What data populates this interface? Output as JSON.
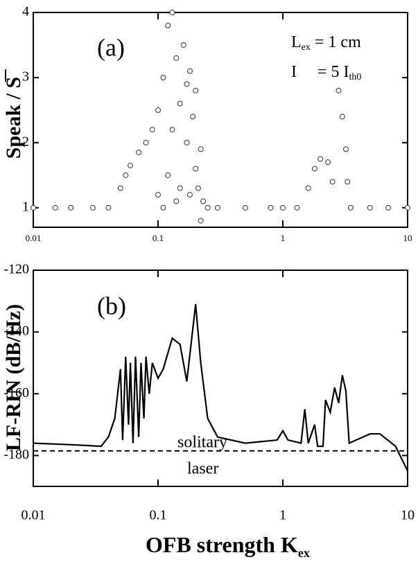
{
  "chart_data": [
    {
      "type": "scatter",
      "label": "(a)",
      "y_label": "Speak / S",
      "notes": [
        [
          "L",
          "ex",
          "= 1 cm"
        ],
        [
          "I",
          "= 5 I",
          "th0"
        ]
      ],
      "xscale": "log",
      "xlim": [
        0.01,
        10
      ],
      "xticks": [
        0.01,
        0.1,
        1,
        10
      ],
      "ylim": [
        0.7,
        4
      ],
      "yticks": [
        1,
        2,
        3,
        4
      ],
      "color": "#333333",
      "x": [
        0.01,
        0.015,
        0.02,
        0.03,
        0.04,
        0.05,
        0.055,
        0.06,
        0.07,
        0.08,
        0.09,
        0.1,
        0.1,
        0.11,
        0.11,
        0.12,
        0.12,
        0.13,
        0.13,
        0.14,
        0.14,
        0.15,
        0.15,
        0.16,
        0.17,
        0.17,
        0.18,
        0.18,
        0.19,
        0.2,
        0.2,
        0.21,
        0.22,
        0.22,
        0.23,
        0.25,
        0.3,
        0.5,
        0.8,
        1,
        1.3,
        1.6,
        1.8,
        2.0,
        2.3,
        2.5,
        2.8,
        3.0,
        3.2,
        3.3,
        3.5,
        5,
        7,
        10
      ],
      "values": [
        1,
        1,
        1,
        1,
        1,
        1.3,
        1.5,
        1.65,
        1.85,
        2.0,
        2.2,
        2.5,
        1.2,
        3.0,
        1.0,
        3.8,
        1.5,
        2.2,
        4.0,
        1.1,
        3.3,
        2.6,
        1.3,
        3.5,
        2.0,
        2.9,
        1.2,
        3.1,
        2.4,
        1.6,
        2.8,
        1.3,
        1.9,
        0.8,
        1.1,
        1.0,
        1,
        1,
        1,
        1,
        1,
        1.3,
        1.6,
        1.75,
        1.7,
        1.4,
        2.8,
        2.4,
        1.9,
        1.4,
        1,
        1,
        1,
        1
      ]
    },
    {
      "type": "line",
      "label": "(b)",
      "y_label": "LF-RIN (dB/Hz)",
      "x_label": "OFB strength  K",
      "x_label_sub": "ex",
      "notes": [
        "solitary",
        "laser"
      ],
      "xscale": "log",
      "xlim": [
        0.01,
        10
      ],
      "xticks": [
        0.01,
        0.1,
        1,
        10
      ],
      "ylim": [
        -190,
        -120
      ],
      "yticks": [
        -120,
        -140,
        -160,
        -180
      ],
      "color": "#000000",
      "ref_lines": [
        -178.5
      ],
      "x": [
        0.01,
        0.02,
        0.035,
        0.04,
        0.045,
        0.05,
        0.052,
        0.055,
        0.058,
        0.06,
        0.063,
        0.066,
        0.07,
        0.073,
        0.077,
        0.08,
        0.085,
        0.09,
        0.1,
        0.11,
        0.13,
        0.15,
        0.17,
        0.2,
        0.22,
        0.25,
        0.3,
        0.5,
        0.9,
        1.0,
        1.1,
        1.4,
        1.5,
        1.6,
        1.8,
        1.9,
        2.1,
        2.2,
        2.4,
        2.6,
        2.8,
        3.0,
        3.2,
        3.4,
        5,
        6,
        8,
        10
      ],
      "values": [
        -176,
        -176.5,
        -177,
        -174,
        -168,
        -152,
        -175,
        -148,
        -170,
        -150,
        -176,
        -148,
        -174,
        -150,
        -168,
        -148,
        -160,
        -150,
        -155,
        -152,
        -142,
        -144,
        -156,
        -131,
        -150,
        -168,
        -174,
        -176,
        -175,
        -172,
        -175,
        -176,
        -165,
        -176,
        -170,
        -177,
        -177,
        -162,
        -166,
        -158,
        -163,
        -154,
        -159,
        -176,
        -173,
        -173,
        -177,
        -185
      ]
    }
  ]
}
